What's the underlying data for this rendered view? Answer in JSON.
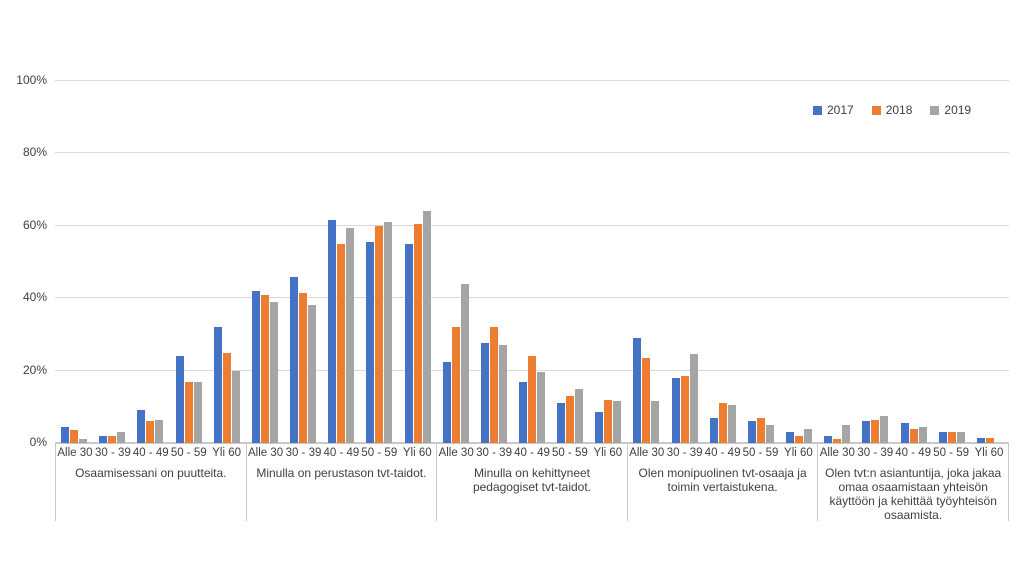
{
  "page": {
    "background": "#ffffff"
  },
  "legend": {
    "items": [
      {
        "label": "2017",
        "color": "#4472C4"
      },
      {
        "label": "2018",
        "color": "#ED7D31"
      },
      {
        "label": "2019",
        "color": "#A5A5A5"
      }
    ]
  },
  "chart_data": {
    "type": "bar",
    "title": "",
    "xlabel": "",
    "ylabel": "",
    "ylim": [
      0,
      100
    ],
    "ytick_labels": [
      "0%",
      "20%",
      "40%",
      "60%",
      "80%",
      "100%"
    ],
    "grid": true,
    "legend_position": "top-right",
    "value_unit": "percent",
    "categories": [
      "Alle 30",
      "30 - 39",
      "40 - 49",
      "50 - 59",
      "Yli 60"
    ],
    "series_names": [
      "2017",
      "2018",
      "2019"
    ],
    "series_colors": {
      "2017": "#4472C4",
      "2018": "#ED7D31",
      "2019": "#A5A5A5"
    },
    "groups": [
      {
        "label": "Osaamisessani on puutteita.",
        "series": [
          {
            "name": "2017",
            "values": [
              4.5,
              2,
              9,
              24,
              32
            ]
          },
          {
            "name": "2018",
            "values": [
              3.5,
              2,
              6,
              17,
              25
            ]
          },
          {
            "name": "2019",
            "values": [
              1,
              3,
              6.5,
              17,
              20
            ]
          }
        ]
      },
      {
        "label": "Minulla on perustason tvt-taidot.",
        "series": [
          {
            "name": "2017",
            "values": [
              42,
              46,
              61.5,
              55.5,
              55
            ]
          },
          {
            "name": "2018",
            "values": [
              41,
              41.5,
              55,
              60,
              60.5
            ]
          },
          {
            "name": "2019",
            "values": [
              39,
              38,
              59.5,
              61,
              64
            ]
          }
        ]
      },
      {
        "label": "Minulla on kehittyneet pedagogiset tvt-taidot.",
        "series": [
          {
            "name": "2017",
            "values": [
              22.5,
              27.5,
              17,
              11,
              8.5
            ]
          },
          {
            "name": "2018",
            "values": [
              32,
              32,
              24,
              13,
              12
            ]
          },
          {
            "name": "2019",
            "values": [
              44,
              27,
              19.5,
              15,
              11.5
            ]
          }
        ]
      },
      {
        "label": "Olen monipuolinen tvt-osaaja ja toimin vertaistukena.",
        "series": [
          {
            "name": "2017",
            "values": [
              29,
              18,
              7,
              6,
              3
            ]
          },
          {
            "name": "2018",
            "values": [
              23.5,
              18.5,
              11,
              7,
              2
            ]
          },
          {
            "name": "2019",
            "values": [
              11.5,
              24.5,
              10.5,
              5,
              4
            ]
          }
        ]
      },
      {
        "label": "Olen tvt:n asiantuntija, joka jakaa omaa osaamistaan yhteisön käyttöön ja kehittää työyhteisön osaamista.",
        "series": [
          {
            "name": "2017",
            "values": [
              2,
              6,
              5.5,
              3,
              1.5
            ]
          },
          {
            "name": "2018",
            "values": [
              1,
              6.5,
              4,
              3,
              1.5
            ]
          },
          {
            "name": "2019",
            "values": [
              5,
              7.5,
              4.5,
              3,
              0
            ]
          }
        ]
      }
    ],
    "colors": {
      "gridline": "#d9d9d9",
      "axis_line": "#c9c9c9",
      "text": "#404040"
    }
  }
}
